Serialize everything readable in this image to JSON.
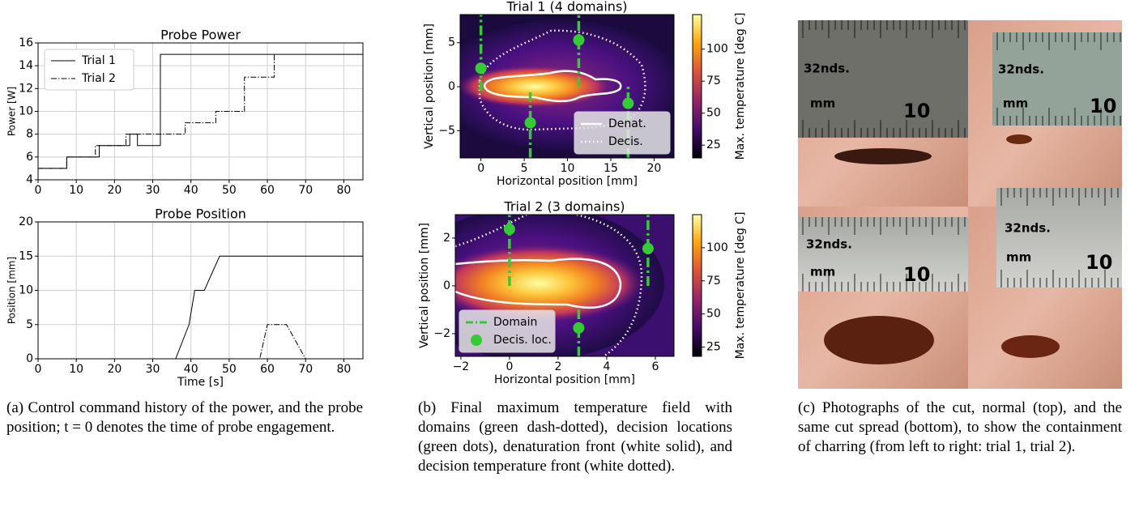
{
  "chart_data": [
    {
      "type": "line",
      "title": "Probe Power",
      "ylabel": "Power [W]",
      "xlim": [
        0,
        85
      ],
      "ylim": [
        4,
        16
      ],
      "xticks": [
        0,
        10,
        20,
        30,
        40,
        50,
        60,
        70,
        80
      ],
      "yticks": [
        4,
        6,
        8,
        10,
        12,
        14,
        16
      ],
      "grid": true,
      "legend": "upper left",
      "series": [
        {
          "name": "Trial 1",
          "color": "#000000",
          "linestyle": "solid",
          "x": [
            0,
            7.5,
            7.5,
            16,
            16,
            24,
            24,
            26,
            26,
            32,
            32,
            85
          ],
          "values": [
            5,
            5,
            6,
            6,
            7,
            7,
            8,
            8,
            7,
            7,
            15,
            15
          ]
        },
        {
          "name": "Trial 2",
          "color": "#000000",
          "linestyle": "dashdot",
          "x": [
            0,
            7.5,
            7.5,
            15,
            15,
            23,
            23,
            38.5,
            38.5,
            46.5,
            46.5,
            54,
            54,
            61.8,
            61.8,
            62
          ],
          "values": [
            5,
            5,
            6,
            6,
            7,
            7,
            8,
            8,
            9,
            9,
            10,
            10,
            13,
            13,
            15,
            15
          ]
        }
      ]
    },
    {
      "type": "line",
      "title": "Probe Position",
      "ylabel": "Position [mm]",
      "xlabel": "Time [s]",
      "xlim": [
        0,
        85
      ],
      "ylim": [
        0,
        20
      ],
      "xticks": [
        0,
        10,
        20,
        30,
        40,
        50,
        60,
        70,
        80
      ],
      "yticks": [
        0,
        5,
        10,
        15,
        20
      ],
      "grid": true,
      "series": [
        {
          "name": "Trial 1",
          "color": "#000000",
          "linestyle": "solid",
          "x": [
            0,
            36,
            39.5,
            41,
            43.5,
            47.5,
            85
          ],
          "values": [
            0,
            0,
            5,
            10,
            10,
            15,
            15
          ]
        },
        {
          "name": "Trial 2",
          "color": "#000000",
          "linestyle": "dashdot",
          "x": [
            0,
            58,
            60,
            65,
            70
          ],
          "values": [
            0,
            0,
            5,
            5,
            0
          ]
        }
      ]
    },
    {
      "type": "heatmap",
      "title": "Trial 1 (4 domains)",
      "xlabel": "Horizontal position [mm]",
      "ylabel": "Vertical position [mm]",
      "colorbar_label": "Max. temperature [deg C]",
      "xlim": [
        -2.4,
        22.3
      ],
      "ylim": [
        -8.1,
        8.2
      ],
      "xticks": [
        0,
        5,
        10,
        15,
        20
      ],
      "yticks": [
        {
          "value": -5,
          "label": "−5"
        },
        0,
        5
      ],
      "clim": [
        15,
        127
      ],
      "cticks": [
        25,
        50,
        75,
        100
      ],
      "legend": "lower right",
      "contours": [
        {
          "name": "Denat.",
          "style": "solid"
        },
        {
          "name": "Decis.",
          "style": "dotted"
        }
      ],
      "domains": {
        "color": "#33cc33",
        "x": [
          0,
          5.7,
          11.3,
          17
        ],
        "y_from": [
          -0.5,
          -8.1,
          0,
          -8.1
        ],
        "y_to": [
          8.2,
          -0.3,
          8.2,
          0.2
        ]
      },
      "decision_locations": {
        "color": "#33cc33",
        "x": [
          0,
          5.7,
          11.3,
          17
        ],
        "y": [
          2.1,
          -4.1,
          5.3,
          -1.9
        ]
      }
    },
    {
      "type": "heatmap",
      "title": "Trial 2 (3 domains)",
      "xlabel": "Horizontal position [mm]",
      "ylabel": "Vertical position [mm]",
      "colorbar_label": "Max. temperature [deg C]",
      "xlim": [
        -2.23,
        6.77
      ],
      "ylim": [
        -2.95,
        2.98
      ],
      "xticks": [
        {
          "value": -2,
          "label": "−2"
        },
        0,
        2,
        4,
        6
      ],
      "yticks": [
        {
          "value": -2,
          "label": "−2"
        },
        0,
        2
      ],
      "clim": [
        18,
        125
      ],
      "cticks": [
        25,
        50,
        75,
        100
      ],
      "legend": "lower left",
      "contours": [
        {
          "style": "solid"
        },
        {
          "style": "dotted"
        }
      ],
      "domains": {
        "name": "Domain",
        "color": "#33cc33",
        "x": [
          0,
          2.85,
          5.7
        ],
        "y_from": [
          0,
          -2.95,
          0
        ],
        "y_to": [
          2.98,
          -0.9,
          2.98
        ]
      },
      "decision_locations": {
        "name": "Decis. loc.",
        "color": "#33cc33",
        "x": [
          0,
          2.85,
          5.7
        ],
        "y": [
          2.37,
          -1.76,
          1.56
        ]
      }
    }
  ],
  "photo_labels": [
    [
      "32nds.",
      "mm",
      "10"
    ],
    [
      "32nds.",
      "mm",
      "10"
    ],
    [
      "32nds.",
      "mm",
      "10"
    ],
    [
      "32nds.",
      "mm",
      "10"
    ]
  ],
  "captions": [
    "(a) Control command history of the power, and the probe position; t = 0 denotes the time of probe engagement.",
    "(b) Final maximum temperature field with domains (green dash-dotted), decision locations (green dots), denaturation front (white solid), and decision temperature front (white dotted).",
    "(c) Photographs of the cut, normal (top), and the same cut spread (bottom), to show the containment of charring (from left to right: trial 1, trial 2)."
  ]
}
